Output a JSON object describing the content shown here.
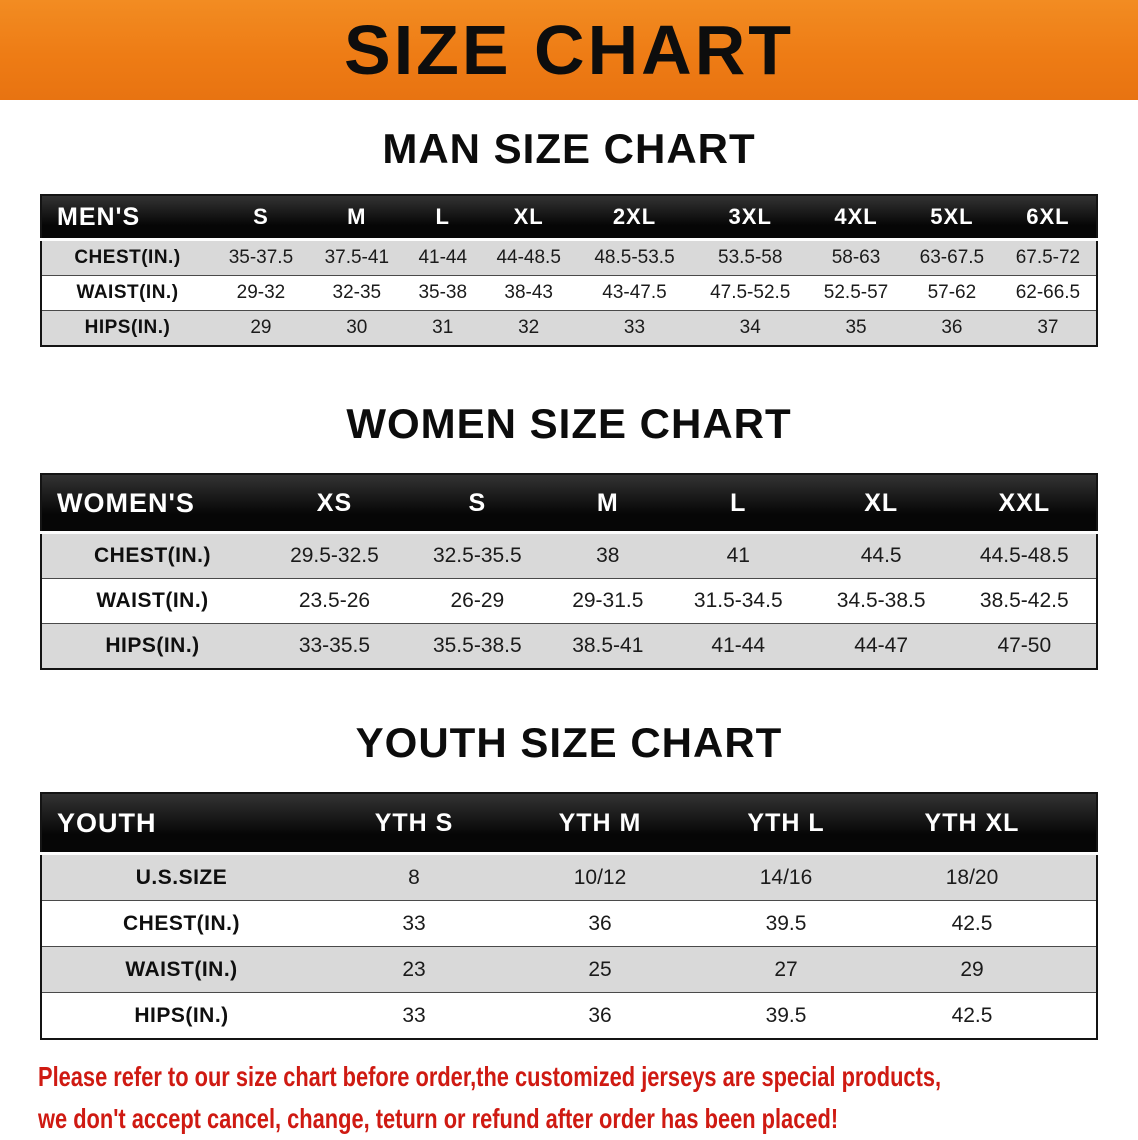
{
  "banner": {
    "title": "SIZE CHART"
  },
  "tables": {
    "men": {
      "heading": "MAN SIZE CHART",
      "corner": "MEN'S",
      "sizes": [
        "S",
        "M",
        "L",
        "XL",
        "2XL",
        "3XL",
        "4XL",
        "5XL",
        "6XL"
      ],
      "rows": [
        {
          "label": "CHEST(IN.)",
          "values": [
            "35-37.5",
            "37.5-41",
            "41-44",
            "44-48.5",
            "48.5-53.5",
            "53.5-58",
            "58-63",
            "63-67.5",
            "67.5-72"
          ]
        },
        {
          "label": "WAIST(IN.)",
          "values": [
            "29-32",
            "32-35",
            "35-38",
            "38-43",
            "43-47.5",
            "47.5-52.5",
            "52.5-57",
            "57-62",
            "62-66.5"
          ]
        },
        {
          "label": "HIPS(IN.)",
          "values": [
            "29",
            "30",
            "31",
            "32",
            "33",
            "34",
            "35",
            "36",
            "37"
          ]
        }
      ]
    },
    "women": {
      "heading": "WOMEN SIZE CHART",
      "corner": "WOMEN'S",
      "sizes": [
        "XS",
        "S",
        "M",
        "L",
        "XL",
        "XXL"
      ],
      "rows": [
        {
          "label": "CHEST(IN.)",
          "values": [
            "29.5-32.5",
            "32.5-35.5",
            "38",
            "41",
            "44.5",
            "44.5-48.5"
          ]
        },
        {
          "label": "WAIST(IN.)",
          "values": [
            "23.5-26",
            "26-29",
            "29-31.5",
            "31.5-34.5",
            "34.5-38.5",
            "38.5-42.5"
          ]
        },
        {
          "label": "HIPS(IN.)",
          "values": [
            "33-35.5",
            "35.5-38.5",
            "38.5-41",
            "41-44",
            "44-47",
            "47-50"
          ]
        }
      ]
    },
    "youth": {
      "heading": "YOUTH SIZE CHART",
      "corner": "YOUTH",
      "sizes": [
        "YTH S",
        "YTH M",
        "YTH L",
        "YTH XL"
      ],
      "rows": [
        {
          "label": "U.S.SIZE",
          "values": [
            "8",
            "10/12",
            "14/16",
            "18/20"
          ]
        },
        {
          "label": "CHEST(IN.)",
          "values": [
            "33",
            "36",
            "39.5",
            "42.5"
          ]
        },
        {
          "label": "WAIST(IN.)",
          "values": [
            "23",
            "25",
            "27",
            "29"
          ]
        },
        {
          "label": "HIPS(IN.)",
          "values": [
            "33",
            "36",
            "39.5",
            "42.5"
          ]
        }
      ]
    }
  },
  "footer": {
    "line1": "Please refer to our size chart before order,the customized jerseys are special products,",
    "line2": "we don't accept cancel, change, teturn or refund after order has been placed!"
  },
  "colors": {
    "banner_bg": "#ee7c15",
    "header_bar": "#121212",
    "shaded_row": "#d9d9d9",
    "note_red": "#cf1a12"
  }
}
